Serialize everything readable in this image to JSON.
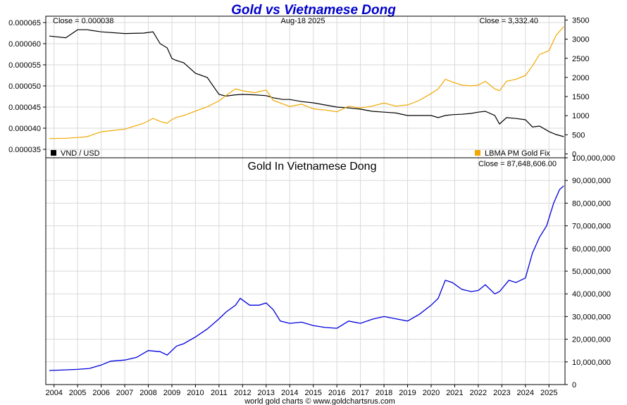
{
  "title": "Gold vs Vietnamese Dong",
  "date": "Aug-18  2025",
  "footer": "world gold charts © www.goldchartsrus.com",
  "colors": {
    "title": "#0000cc",
    "vnd": "#000000",
    "gold": "#f0a800",
    "gold_vnd": "#0000dd",
    "grid": "#d9d9d9"
  },
  "chart_data": [
    {
      "type": "line",
      "panel": "top",
      "close_left": "Close = 0.000038",
      "close_right": "Close = 3,332.40",
      "x": [
        2003.8,
        2004.5,
        2005.0,
        2005.4,
        2006.0,
        2007.0,
        2007.8,
        2008.2,
        2008.5,
        2008.8,
        2009.0,
        2009.2,
        2009.5,
        2010.0,
        2010.5,
        2011.0,
        2011.3,
        2011.7,
        2012.0,
        2012.5,
        2013.0,
        2013.3,
        2013.7,
        2014.0,
        2014.5,
        2015.0,
        2015.5,
        2016.0,
        2016.5,
        2017.0,
        2017.5,
        2018.0,
        2018.5,
        2019.0,
        2019.5,
        2020.0,
        2020.3,
        2020.6,
        2020.9,
        2021.3,
        2021.7,
        2022.0,
        2022.3,
        2022.7,
        2022.9,
        2023.2,
        2023.6,
        2024.0,
        2024.3,
        2024.6,
        2025.0,
        2025.3,
        2025.63
      ],
      "series": [
        {
          "name": "VND / USD",
          "axis": "left",
          "color": "#000000",
          "values": [
            6.18e-05,
            6.14e-05,
            6.33e-05,
            6.33e-05,
            6.28e-05,
            6.24e-05,
            6.25e-05,
            6.28e-05,
            6e-05,
            5.9e-05,
            5.65e-05,
            5.6e-05,
            5.55e-05,
            5.3e-05,
            5.2e-05,
            4.8e-05,
            4.76e-05,
            4.79e-05,
            4.8e-05,
            4.79e-05,
            4.77e-05,
            4.72e-05,
            4.68e-05,
            4.68e-05,
            4.63e-05,
            4.6e-05,
            4.55e-05,
            4.5e-05,
            4.48e-05,
            4.45e-05,
            4.4e-05,
            4.38e-05,
            4.36e-05,
            4.3e-05,
            4.3e-05,
            4.3e-05,
            4.25e-05,
            4.3e-05,
            4.32e-05,
            4.33e-05,
            4.35e-05,
            4.38e-05,
            4.4e-05,
            4.3e-05,
            4.1e-05,
            4.25e-05,
            4.23e-05,
            4.2e-05,
            4.03e-05,
            4.05e-05,
            3.92e-05,
            3.85e-05,
            3.8e-05
          ]
        },
        {
          "name": "LBMA PM Gold Fix",
          "axis": "right",
          "color": "#f0a800",
          "values": [
            400,
            410,
            430,
            450,
            580,
            650,
            800,
            930,
            850,
            800,
            900,
            960,
            1000,
            1120,
            1230,
            1390,
            1530,
            1700,
            1650,
            1600,
            1670,
            1400,
            1310,
            1240,
            1300,
            1180,
            1150,
            1100,
            1250,
            1200,
            1250,
            1330,
            1250,
            1280,
            1400,
            1580,
            1700,
            1950,
            1880,
            1800,
            1780,
            1800,
            1900,
            1700,
            1650,
            1900,
            1950,
            2050,
            2300,
            2600,
            2700,
            3100,
            3332
          ]
        }
      ],
      "y_left": {
        "min": 3.3e-05,
        "max": 6.65e-05,
        "ticks": [
          "0.000035",
          "0.000040",
          "0.000045",
          "0.000050",
          "0.000055",
          "0.000060",
          "0.000065"
        ]
      },
      "y_right": {
        "min": -100,
        "max": 3600,
        "ticks": [
          "0",
          "500",
          "1000",
          "1500",
          "2000",
          "2500",
          "3000",
          "3500"
        ]
      },
      "legend": [
        {
          "label": "VND / USD",
          "color": "#000000",
          "position": "bottom-left"
        },
        {
          "label": "LBMA PM Gold Fix",
          "color": "#f0a800",
          "position": "bottom-right"
        }
      ],
      "grid": true
    },
    {
      "type": "line",
      "panel": "bottom",
      "title": "Gold In Vietnamese Dong",
      "close_right": "Close = 87,648,606.00",
      "x": [
        2003.8,
        2004.5,
        2005.0,
        2005.5,
        2006.0,
        2006.4,
        2007.0,
        2007.5,
        2008.0,
        2008.5,
        2008.8,
        2009.2,
        2009.5,
        2010.0,
        2010.5,
        2011.0,
        2011.3,
        2011.7,
        2011.9,
        2012.3,
        2012.7,
        2013.0,
        2013.3,
        2013.6,
        2014.0,
        2014.5,
        2015.0,
        2015.5,
        2016.0,
        2016.5,
        2017.0,
        2017.5,
        2018.0,
        2018.5,
        2019.0,
        2019.5,
        2020.0,
        2020.3,
        2020.6,
        2020.9,
        2021.3,
        2021.7,
        2022.0,
        2022.3,
        2022.7,
        2022.9,
        2023.3,
        2023.6,
        2024.0,
        2024.3,
        2024.6,
        2024.9,
        2025.2,
        2025.45,
        2025.63
      ],
      "series": [
        {
          "name": "Gold in VND",
          "color": "#0000dd",
          "values": [
            6200000,
            6500000,
            6700000,
            7100000,
            8600000,
            10300000,
            10800000,
            12000000,
            15000000,
            14500000,
            13000000,
            17000000,
            18000000,
            21000000,
            24500000,
            29000000,
            32000000,
            35000000,
            38000000,
            35000000,
            35000000,
            36000000,
            33000000,
            28000000,
            27000000,
            27500000,
            26000000,
            25200000,
            24800000,
            28000000,
            27000000,
            28800000,
            30000000,
            29000000,
            28000000,
            31000000,
            35000000,
            38000000,
            46000000,
            45000000,
            42000000,
            41000000,
            41500000,
            44000000,
            40000000,
            41000000,
            46000000,
            45000000,
            47000000,
            58000000,
            65000000,
            70000000,
            80000000,
            86000000,
            87648606
          ]
        }
      ],
      "y": {
        "min": 0,
        "max": 100000000,
        "ticks": [
          "0",
          "10,000,000",
          "20,000,000",
          "30,000,000",
          "40,000,000",
          "50,000,000",
          "60,000,000",
          "70,000,000",
          "80,000,000",
          "90,000,000",
          "100,000,000"
        ]
      },
      "grid": true
    }
  ],
  "x_axis": {
    "min": 2003.65,
    "max": 2025.68,
    "ticks": [
      2004,
      2005,
      2006,
      2007,
      2008,
      2009,
      2010,
      2011,
      2012,
      2013,
      2014,
      2015,
      2016,
      2017,
      2018,
      2019,
      2020,
      2021,
      2022,
      2023,
      2024,
      2025
    ],
    "tick_labels": [
      "2004",
      "2005",
      "2006",
      "2007",
      "2008",
      "2009",
      "2010",
      "2011",
      "2012",
      "2013",
      "2014",
      "2015",
      "2016",
      "2017",
      "2018",
      "2019",
      "2020",
      "2021",
      "2022",
      "2023",
      "2024",
      "2025"
    ]
  }
}
